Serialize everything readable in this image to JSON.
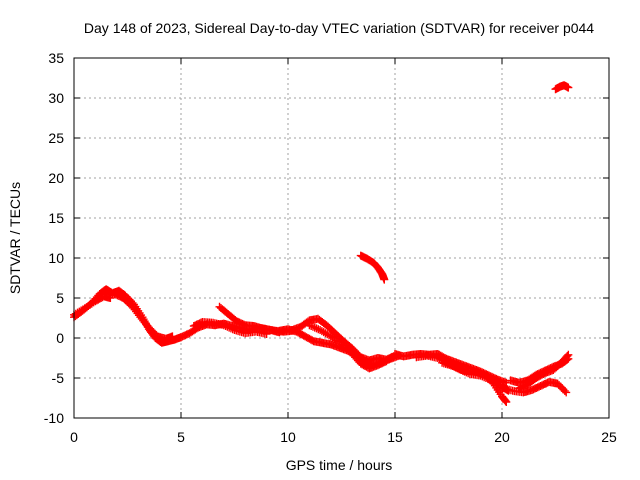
{
  "chart_data": {
    "type": "scatter",
    "title": "Day 148 of 2023, Sidereal Day-to-day VTEC variation (SDTVAR) for receiver p044",
    "xlabel": "GPS time / hours",
    "ylabel": "SDTVAR / TECUs",
    "xlim": [
      0,
      25
    ],
    "ylim": [
      -10,
      35
    ],
    "xticks": [
      0,
      5,
      10,
      15,
      20,
      25
    ],
    "yticks": [
      -10,
      -5,
      0,
      5,
      10,
      15,
      20,
      25,
      30,
      35
    ],
    "grid": true,
    "marker": "+",
    "series": [
      {
        "name": "SDTVAR p044",
        "color": "#ff0000",
        "tracks": [
          [
            [
              0.0,
              2.6
            ],
            [
              0.4,
              3.4
            ],
            [
              0.8,
              4.3
            ],
            [
              1.2,
              5.5
            ],
            [
              1.5,
              6.1
            ],
            [
              1.8,
              5.6
            ],
            [
              2.1,
              5.9
            ],
            [
              2.4,
              5.3
            ],
            [
              2.8,
              4.2
            ],
            [
              3.2,
              2.6
            ],
            [
              3.5,
              1.1
            ],
            [
              3.8,
              0.0
            ],
            [
              4.1,
              -0.6
            ],
            [
              4.4,
              -0.4
            ],
            [
              4.7,
              -0.2
            ],
            [
              5.0,
              0.1
            ]
          ],
          [
            [
              0.0,
              2.9
            ],
            [
              0.5,
              3.7
            ],
            [
              1.0,
              4.6
            ],
            [
              1.4,
              5.2
            ],
            [
              1.7,
              5.0
            ]
          ],
          [
            [
              1.9,
              5.5
            ],
            [
              2.3,
              5.0
            ],
            [
              2.7,
              4.0
            ],
            [
              3.1,
              2.6
            ],
            [
              3.5,
              1.3
            ],
            [
              3.9,
              0.2
            ],
            [
              4.3,
              -0.1
            ],
            [
              4.6,
              0.2
            ]
          ],
          [
            [
              5.0,
              0.1
            ],
            [
              5.4,
              0.6
            ],
            [
              5.8,
              1.3
            ],
            [
              6.2,
              1.7
            ],
            [
              6.6,
              1.6
            ],
            [
              7.0,
              1.8
            ],
            [
              7.4,
              1.5
            ],
            [
              7.8,
              1.2
            ],
            [
              8.2,
              1.0
            ],
            [
              8.6,
              1.3
            ],
            [
              9.0,
              1.1
            ],
            [
              9.4,
              0.9
            ],
            [
              9.8,
              0.8
            ],
            [
              10.2,
              0.9
            ]
          ],
          [
            [
              6.8,
              3.9
            ],
            [
              7.2,
              3.0
            ],
            [
              7.6,
              2.1
            ],
            [
              8.0,
              1.6
            ],
            [
              8.4,
              1.5
            ],
            [
              8.8,
              1.2
            ],
            [
              9.2,
              1.0
            ],
            [
              9.6,
              0.7
            ]
          ],
          [
            [
              5.6,
              1.5
            ],
            [
              6.0,
              2.0
            ],
            [
              6.5,
              1.9
            ],
            [
              7.0,
              1.6
            ],
            [
              7.5,
              1.0
            ],
            [
              8.0,
              0.6
            ],
            [
              8.5,
              0.8
            ],
            [
              9.0,
              0.5
            ]
          ],
          [
            [
              10.2,
              1.0
            ],
            [
              10.6,
              1.4
            ],
            [
              11.0,
              2.2
            ],
            [
              11.4,
              2.4
            ],
            [
              11.8,
              1.6
            ],
            [
              12.2,
              0.6
            ],
            [
              12.6,
              -0.4
            ],
            [
              13.0,
              -1.3
            ],
            [
              13.4,
              -2.4
            ],
            [
              13.8,
              -2.8
            ],
            [
              14.2,
              -2.5
            ],
            [
              14.6,
              -2.7
            ],
            [
              15.0,
              -2.2
            ]
          ],
          [
            [
              9.6,
              0.9
            ],
            [
              10.0,
              1.1
            ],
            [
              10.4,
              0.8
            ],
            [
              10.8,
              0.2
            ],
            [
              11.2,
              -0.4
            ],
            [
              11.6,
              -0.6
            ],
            [
              12.0,
              -0.8
            ],
            [
              12.4,
              -1.2
            ],
            [
              12.8,
              -1.6
            ],
            [
              13.2,
              -2.1
            ],
            [
              13.6,
              -3.0
            ],
            [
              14.0,
              -3.4
            ],
            [
              14.4,
              -3.0
            ],
            [
              14.8,
              -2.6
            ],
            [
              15.2,
              -2.2
            ]
          ],
          [
            [
              11.0,
              1.6
            ],
            [
              11.5,
              1.0
            ],
            [
              12.0,
              0.2
            ],
            [
              12.5,
              -0.8
            ],
            [
              13.0,
              -2.0
            ],
            [
              13.4,
              -3.2
            ],
            [
              13.8,
              -3.8
            ],
            [
              14.2,
              -3.4
            ],
            [
              14.6,
              -2.9
            ]
          ],
          [
            [
              13.4,
              10.3
            ],
            [
              13.7,
              9.9
            ],
            [
              14.0,
              9.4
            ],
            [
              14.2,
              8.8
            ],
            [
              14.4,
              8.0
            ],
            [
              14.5,
              7.3
            ]
          ],
          [
            [
              15.0,
              -2.0
            ],
            [
              15.4,
              -2.3
            ],
            [
              15.8,
              -2.1
            ],
            [
              16.2,
              -2.0
            ],
            [
              16.6,
              -2.1
            ],
            [
              17.0,
              -2.0
            ],
            [
              17.4,
              -2.6
            ],
            [
              17.8,
              -3.0
            ],
            [
              18.2,
              -3.4
            ],
            [
              18.6,
              -3.8
            ],
            [
              19.0,
              -4.2
            ],
            [
              19.4,
              -4.7
            ],
            [
              19.8,
              -5.2
            ],
            [
              20.2,
              -5.6
            ]
          ],
          [
            [
              16.0,
              -2.4
            ],
            [
              16.5,
              -2.2
            ],
            [
              17.0,
              -2.5
            ],
            [
              17.5,
              -3.2
            ],
            [
              18.0,
              -3.9
            ],
            [
              18.5,
              -4.5
            ],
            [
              19.0,
              -4.7
            ],
            [
              19.5,
              -5.3
            ],
            [
              20.0,
              -6.1
            ],
            [
              20.3,
              -6.6
            ]
          ],
          [
            [
              17.2,
              -3.1
            ],
            [
              17.7,
              -3.5
            ],
            [
              18.2,
              -4.1
            ],
            [
              18.7,
              -4.2
            ],
            [
              19.2,
              -4.6
            ],
            [
              19.6,
              -5.7
            ],
            [
              20.0,
              -7.3
            ],
            [
              20.2,
              -8.0
            ]
          ],
          [
            [
              20.0,
              -6.2
            ],
            [
              20.5,
              -6.6
            ],
            [
              21.0,
              -6.8
            ],
            [
              21.4,
              -6.5
            ],
            [
              21.8,
              -6.0
            ],
            [
              22.2,
              -5.5
            ],
            [
              22.6,
              -5.7
            ],
            [
              23.0,
              -6.8
            ]
          ],
          [
            [
              20.4,
              -5.3
            ],
            [
              20.8,
              -5.6
            ],
            [
              21.2,
              -5.3
            ],
            [
              21.6,
              -4.6
            ],
            [
              22.0,
              -4.1
            ],
            [
              22.4,
              -3.6
            ],
            [
              22.8,
              -3.2
            ],
            [
              23.1,
              -2.6
            ]
          ],
          [
            [
              20.8,
              -6.3
            ],
            [
              21.2,
              -5.8
            ],
            [
              21.6,
              -5.0
            ],
            [
              22.0,
              -4.4
            ],
            [
              22.4,
              -4.0
            ],
            [
              22.8,
              -3.0
            ],
            [
              23.1,
              -2.1
            ]
          ],
          [
            [
              22.5,
              31.1
            ],
            [
              22.7,
              31.4
            ],
            [
              22.9,
              31.6
            ],
            [
              23.1,
              31.3
            ]
          ]
        ]
      }
    ]
  }
}
